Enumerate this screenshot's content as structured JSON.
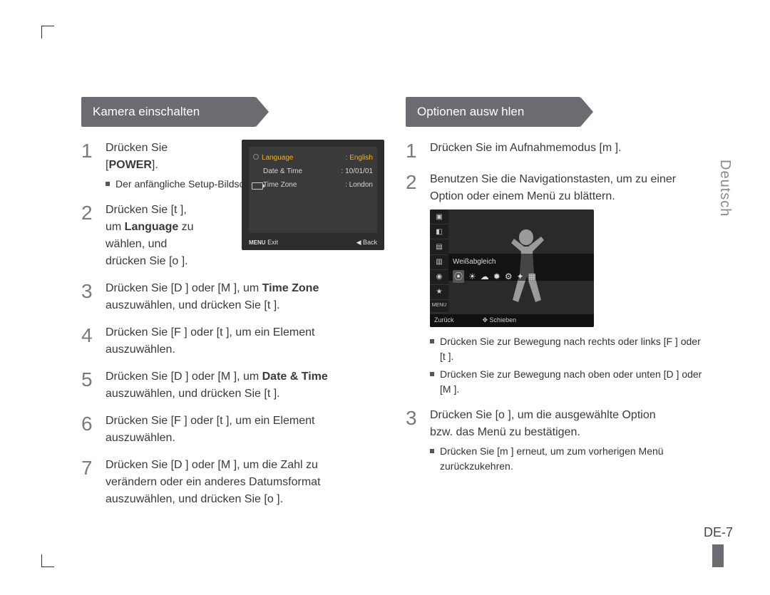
{
  "side_label": "Deutsch",
  "page_number": "DE-7",
  "left": {
    "heading": "Kamera einschalten",
    "ribbon_width": 260,
    "steps": [
      {
        "n": "1",
        "lines": [
          "Drücken Sie",
          "[<b>POWER</b>]."
        ],
        "sub": "Der anfängliche Setup-Bildschirm wird angezeigt."
      },
      {
        "n": "2",
        "lines": [
          "Drücken Sie [t  ],",
          "um <b>Language</b> zu",
          "wählen, und",
          "drücken Sie [o  ]."
        ]
      },
      {
        "n": "3",
        "lines": [
          "Drücken Sie [D  ] oder [M  ], um <b>Time Zone</b>",
          "auszuwählen, und drücken Sie [t  ]."
        ]
      },
      {
        "n": "4",
        "lines": [
          "Drücken Sie [F  ] oder [t  ], um ein Element",
          "auszuwählen."
        ]
      },
      {
        "n": "5",
        "lines": [
          "Drücken Sie [D  ] oder [M  ], um <b>Date & Time</b>",
          "auszuwählen, und drücken Sie [t  ]."
        ]
      },
      {
        "n": "6",
        "lines": [
          "Drücken Sie [F  ] oder [t  ], um ein Element",
          "auszuwählen."
        ]
      },
      {
        "n": "7",
        "lines": [
          "Drücken Sie [D  ] oder [M  ], um die Zahl zu",
          "verändern oder ein anderes Datumsformat",
          "auszuwählen, und drücken Sie [o  ]."
        ]
      }
    ],
    "lcd": {
      "rows": [
        {
          "label": "Language",
          "value": ": English",
          "hi": true
        },
        {
          "label": "Date & Time",
          "value": ": 10/01/01"
        },
        {
          "label": "Time Zone",
          "value": ": London"
        }
      ],
      "bottom_left": "Exit",
      "bottom_right": "Back",
      "menu": "MENU"
    }
  },
  "right": {
    "heading": "Optionen ausw hlen",
    "ribbon_width": 260,
    "steps": [
      {
        "n": "1",
        "lines": [
          "Drücken Sie im Aufnahmemodus [m  ]."
        ]
      },
      {
        "n": "2",
        "lines": [
          "Benutzen Sie die Navigationstasten, um zu einer",
          "Option oder einem Menü zu blättern."
        ],
        "screen": true,
        "bullets": [
          "Drücken Sie zur Bewegung nach rechts oder links [F  ] oder [t  ].",
          "Drücken Sie zur Bewegung nach oben oder unten [D  ] oder [M  ]."
        ]
      },
      {
        "n": "3",
        "lines": [
          "Drücken Sie [o  ], um die ausgewählte Option",
          "bzw. das Menü zu bestätigen."
        ],
        "bullets": [
          "Drücken Sie [m  ] erneut, um zum vorherigen Menü zurückzukehren."
        ]
      }
    ],
    "lcd2": {
      "label": "Weißabgleich",
      "icons": [
        "⦿",
        "☀",
        "☁",
        "✹",
        "⚙",
        "✦",
        "▦"
      ],
      "side_icons": [
        "▣",
        "◧",
        "▤",
        "▥",
        "◉",
        "★"
      ],
      "bottom_left": "Zurück",
      "bottom_right": "Schieben",
      "menu": "MENU"
    }
  }
}
